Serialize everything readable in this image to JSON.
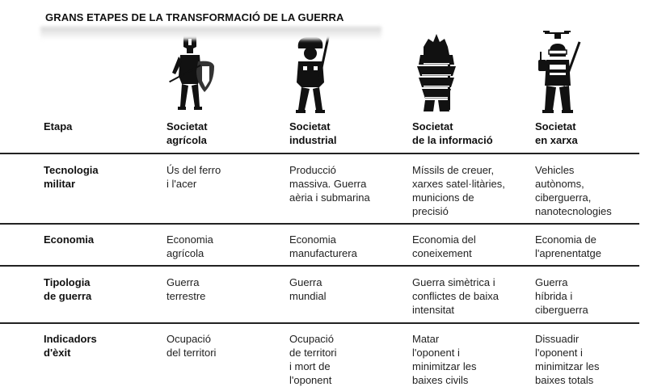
{
  "title": "GRANS ETAPES DE LA TRANSFORMACIÓ DE LA GUERRA",
  "header": {
    "stage_label": "Etapa",
    "columns": [
      {
        "line1": "Societat",
        "line2": "agrícola",
        "icon": "warrior-shield-icon"
      },
      {
        "line1": "Societat",
        "line2": "industrial",
        "icon": "soldier-rifle-icon"
      },
      {
        "line1": "Societat",
        "line2": "de la informació",
        "icon": "ghillie-sniper-icon"
      },
      {
        "line1": "Societat",
        "line2": "en xarxa",
        "icon": "drone-operator-icon"
      }
    ]
  },
  "rows": [
    {
      "label": [
        "Tecnologia",
        "militar"
      ],
      "cells": [
        [
          "Ús del ferro",
          "i l'acer"
        ],
        [
          "Producció",
          "massiva. Guerra",
          "aèria i submarina"
        ],
        [
          "Míssils de creuer,",
          "xarxes satel·litàries,",
          "municions de",
          "precisió"
        ],
        [
          "Vehicles",
          "autònoms,",
          "ciberguerra,",
          "nanotecnologies"
        ]
      ]
    },
    {
      "label": [
        "Economia"
      ],
      "cells": [
        [
          "Economia",
          "agrícola"
        ],
        [
          "Economia",
          "manufacturera"
        ],
        [
          "Economia del",
          "coneixement"
        ],
        [
          "Economia de",
          "l'aprenentatge"
        ]
      ]
    },
    {
      "label": [
        "Tipologia",
        "de guerra"
      ],
      "cells": [
        [
          "Guerra",
          "terrestre"
        ],
        [
          "Guerra",
          "mundial"
        ],
        [
          "Guerra simètrica i",
          "conflictes de baixa",
          "intensitat"
        ],
        [
          "Guerra",
          "híbrida i",
          "ciberguerra"
        ]
      ]
    },
    {
      "label": [
        "Indicadors",
        "d'èxit"
      ],
      "cells": [
        [
          "Ocupació",
          "del territori"
        ],
        [
          "Ocupació",
          "de territori",
          "i mort de",
          "l'oponent"
        ],
        [
          "Matar",
          "l'oponent i",
          "minimitzar les",
          "baixes civils"
        ],
        [
          "Dissuadir",
          "l'oponent i",
          "minimitzar les",
          "baixes totals"
        ]
      ]
    }
  ]
}
